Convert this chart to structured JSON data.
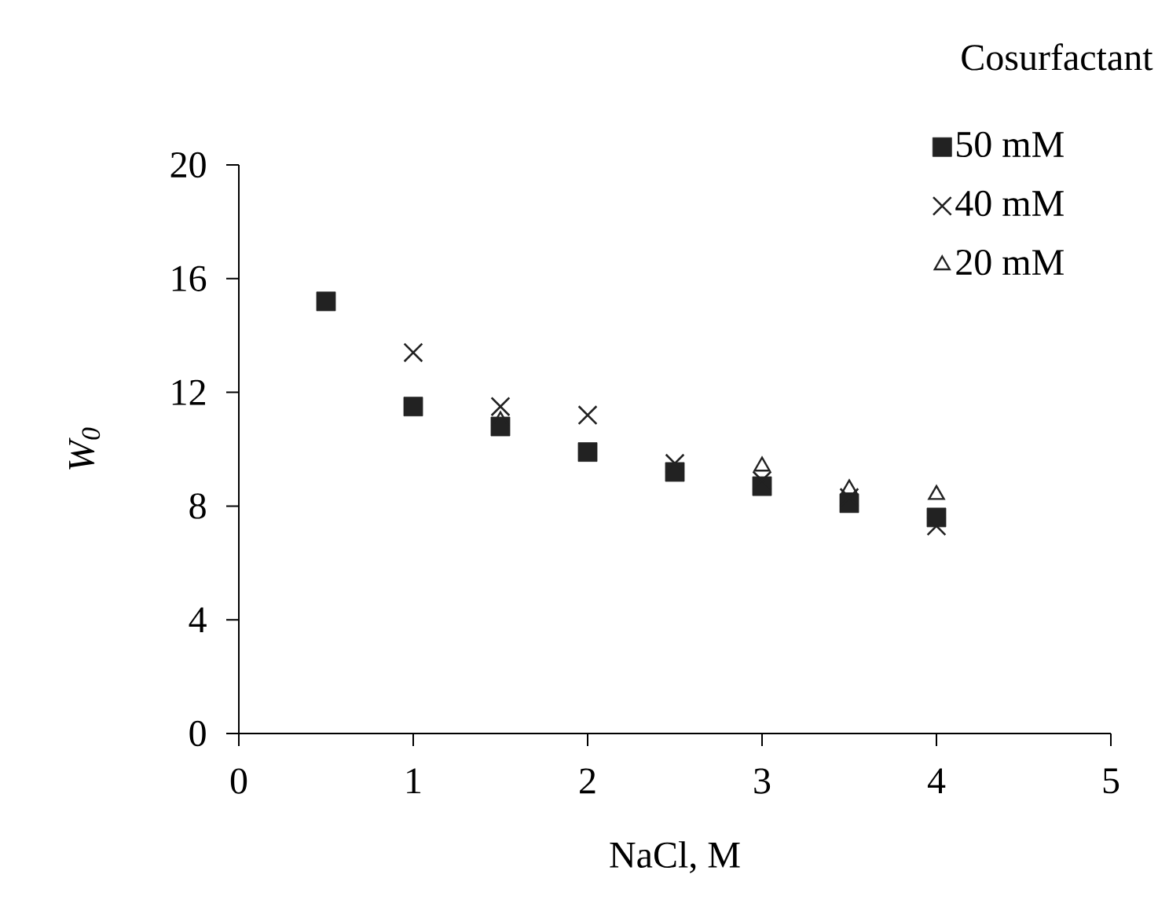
{
  "chart_data": {
    "type": "scatter",
    "xlabel": "NaCl, M",
    "ylabel": "W$_{0}$",
    "legend_title": "Cosurfactant",
    "legend": "top right",
    "xlim": [
      0,
      5
    ],
    "ylim": [
      0,
      20
    ],
    "xticks": [
      0,
      1,
      2,
      3,
      4,
      5
    ],
    "yticks": [
      0,
      4,
      8,
      12,
      16,
      20
    ],
    "series": [
      {
        "name": "50 mM",
        "color": "#222222",
        "marker": "square",
        "x": [
          0.5,
          1,
          1.5,
          2,
          2.5,
          3,
          3.5,
          4
        ],
        "values": [
          15.2,
          11.5,
          10.8,
          9.9,
          9.2,
          8.7,
          8.1,
          7.6
        ]
      },
      {
        "name": "40 mM",
        "color": "#222222",
        "marker": "cross",
        "x": [
          1,
          1.5,
          2,
          2.5,
          3,
          3.5,
          4
        ],
        "values": [
          13.4,
          11.5,
          11.2,
          9.5,
          8.9,
          8.3,
          7.3
        ]
      },
      {
        "name": "20 mM",
        "color": "#222222",
        "marker": "triangle",
        "x": [
          1.5,
          3,
          3.5,
          4
        ],
        "values": [
          11.0,
          9.4,
          8.6,
          8.4
        ]
      }
    ]
  }
}
